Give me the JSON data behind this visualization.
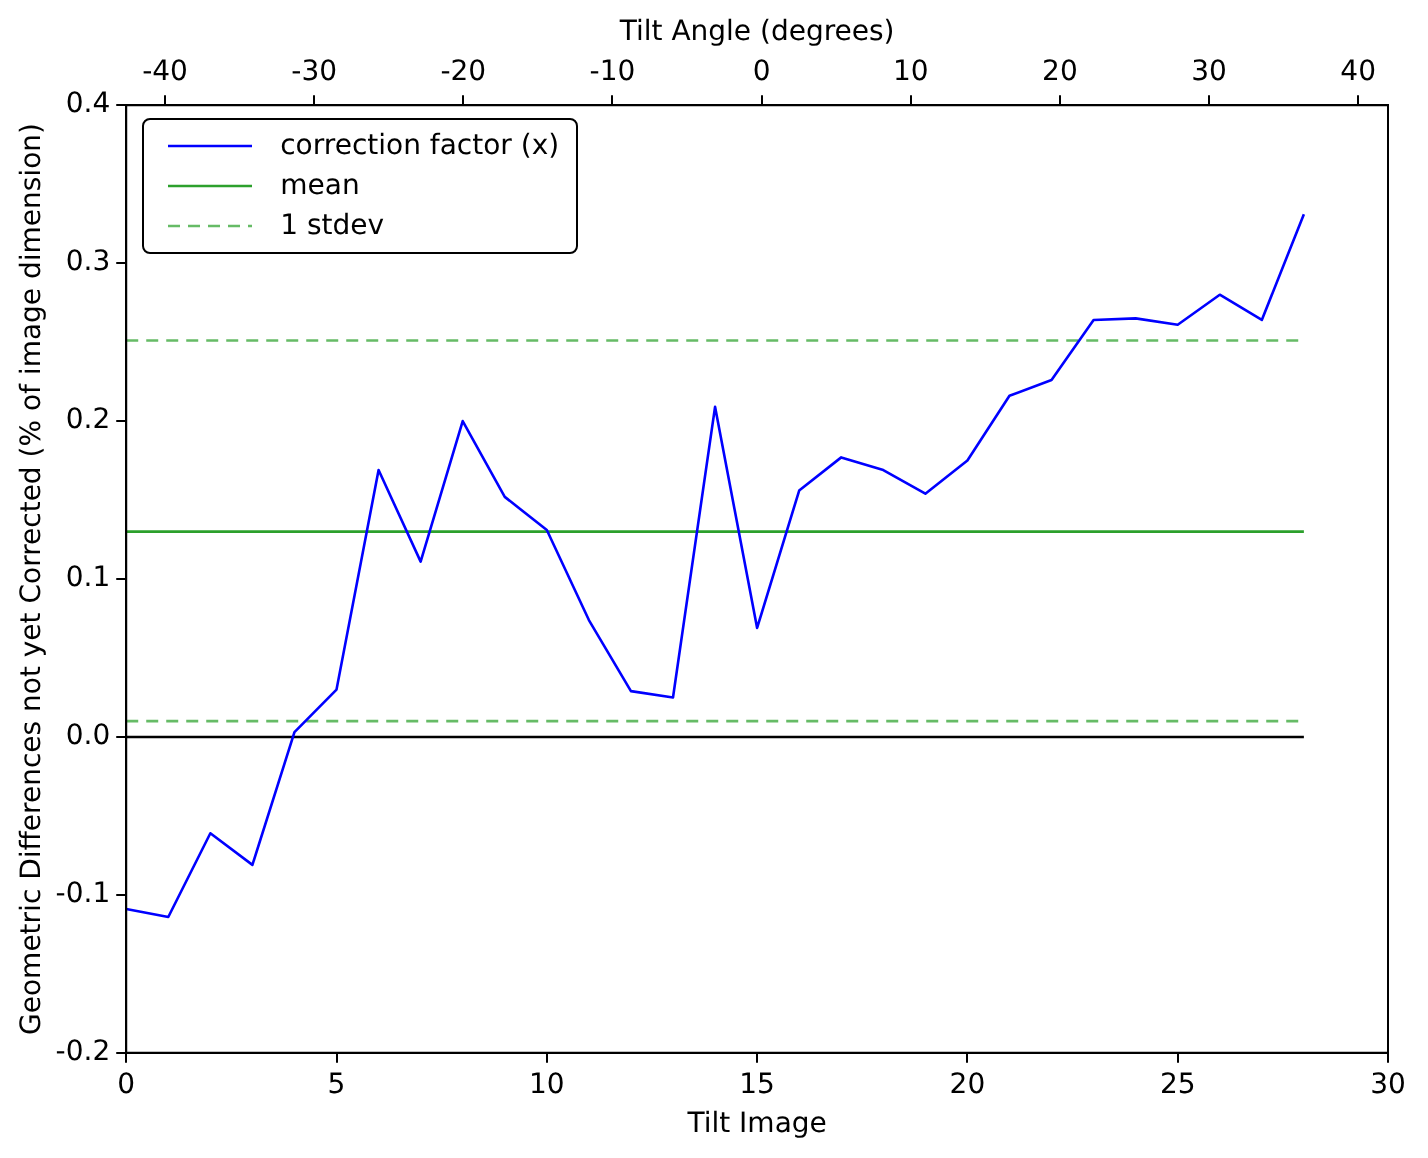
{
  "chart_data": {
    "type": "line",
    "xlabel": "Tilt Image",
    "ylabel": "Geometric Differences not yet Corrected (% of image dimension)",
    "x2label": "Tilt Angle (degrees)",
    "xlim": [
      0,
      30
    ],
    "xticks": [
      0,
      5,
      10,
      15,
      20,
      25,
      30
    ],
    "ylim": [
      -0.2,
      0.4
    ],
    "yticks": [
      -0.2,
      -0.1,
      {
        "value": 0,
        "label": "0.0"
      },
      0.1,
      0.2,
      0.3,
      0.4
    ],
    "x2lim": [
      -42.6,
      42
    ],
    "x2ticks": [
      -40,
      -30,
      -20,
      -10,
      0,
      10,
      20,
      30,
      40
    ],
    "grid": false,
    "legend": "top left",
    "series": [
      {
        "name": "correction factor (x)",
        "color": "#0000ff",
        "x": [
          0,
          1,
          2,
          3,
          4,
          5,
          6,
          7,
          8,
          9,
          10,
          11,
          12,
          13,
          14,
          15,
          16,
          17,
          18,
          19,
          20,
          21,
          22,
          23,
          24,
          25,
          26,
          27,
          28
        ],
        "values": [
          -0.109,
          -0.114,
          -0.061,
          -0.081,
          0.003,
          0.03,
          0.169,
          0.111,
          0.2,
          0.152,
          0.131,
          0.074,
          0.029,
          0.025,
          0.209,
          0.069,
          0.156,
          0.177,
          0.169,
          0.154,
          0.175,
          0.216,
          0.226,
          0.264,
          0.265,
          0.261,
          0.28,
          0.264,
          0.331
        ]
      },
      {
        "name": "mean",
        "color": "#2ca02c",
        "x": [
          0,
          28
        ],
        "values": [
          0.13,
          0.13
        ]
      },
      {
        "name": "1 stdev",
        "color": "#66bb66",
        "line_style": "dashed",
        "x": [
          0,
          28
        ],
        "values": [
          0.251,
          0.251
        ]
      },
      {
        "color": "#66bb66",
        "line_style": "dashed",
        "x": [
          0,
          28
        ],
        "values": [
          0.01,
          0.01
        ]
      },
      {
        "color": "#000000",
        "x": [
          0,
          28
        ],
        "values": [
          0,
          0
        ]
      }
    ]
  }
}
